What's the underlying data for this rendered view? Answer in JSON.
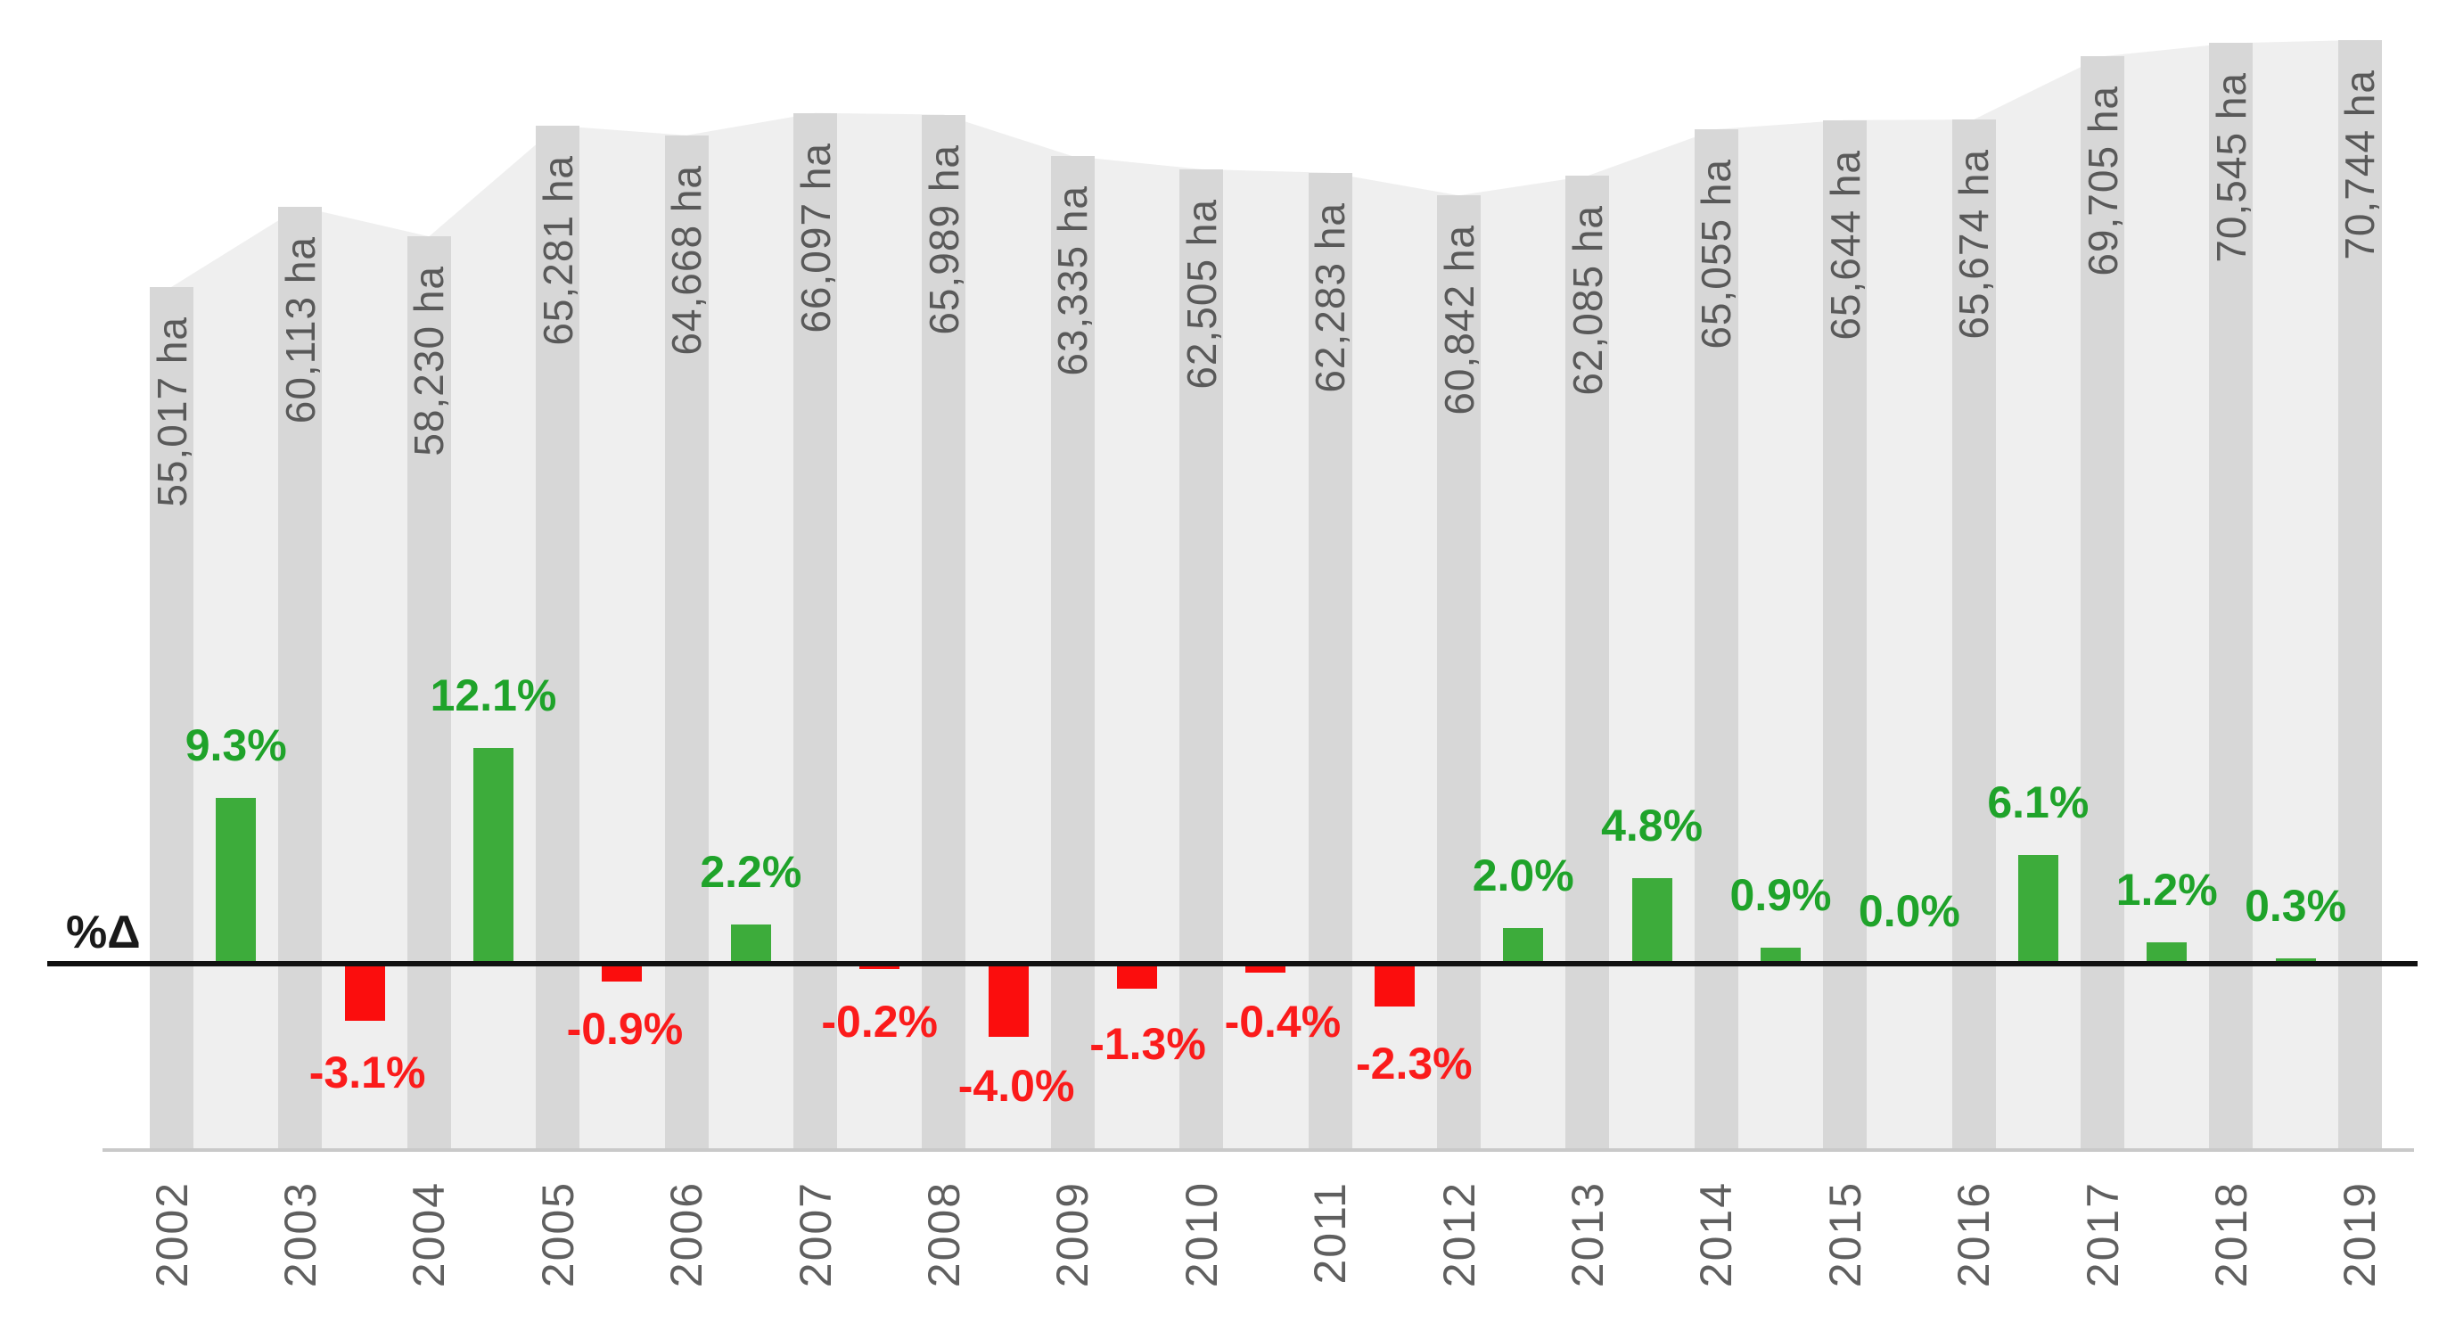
{
  "chart_data": {
    "type": "combo",
    "title": "",
    "categories": [
      "2002",
      "2003",
      "2004",
      "2005",
      "2006",
      "2007",
      "2008",
      "2009",
      "2010",
      "2011",
      "2012",
      "2013",
      "2014",
      "2015",
      "2016",
      "2017",
      "2018",
      "2019"
    ],
    "series": [
      {
        "name": "hectares",
        "type": "area+column",
        "unit": "ha",
        "values": [
          55017,
          60113,
          58230,
          65281,
          64668,
          66097,
          65989,
          63335,
          62505,
          62283,
          60842,
          62085,
          65055,
          65644,
          65674,
          69705,
          70545,
          70744
        ],
        "data_labels": [
          "55,017 ha",
          "60,113 ha",
          "58,230 ha",
          "65,281 ha",
          "64,668 ha",
          "66,097 ha",
          "65,989 ha",
          "63,335 ha",
          "62,505 ha",
          "62,283 ha",
          "60,842 ha",
          "62,085 ha",
          "65,055 ha",
          "65,644 ha",
          "65,674 ha",
          "69,705 ha",
          "70,545 ha",
          "70,744 ha"
        ],
        "ylim": [
          0,
          73250
        ]
      },
      {
        "name": "percent-change-year-over-year",
        "type": "column",
        "unit": "%",
        "between_categories": [
          "2002-2003",
          "2003-2004",
          "2004-2005",
          "2005-2006",
          "2006-2007",
          "2007-2008",
          "2008-2009",
          "2009-2010",
          "2010-2011",
          "2011-2012",
          "2012-2013",
          "2013-2014",
          "2014-2015",
          "2015-2016",
          "2016-2017",
          "2017-2018",
          "2018-2019"
        ],
        "values": [
          9.3,
          -3.1,
          12.1,
          -0.9,
          2.2,
          -0.2,
          -4.0,
          -1.3,
          -0.4,
          -2.3,
          2.0,
          4.8,
          0.9,
          0.0,
          6.1,
          1.2,
          0.3
        ],
        "data_labels": [
          "9.3%",
          "-3.1%",
          "12.1%",
          "-0.9%",
          "2.2%",
          "-0.2%",
          "-4.0%",
          "-1.3%",
          "-0.4%",
          "-2.3%",
          "2.0%",
          "4.8%",
          "0.9%",
          "0.0%",
          "6.1%",
          "1.2%",
          "0.3%"
        ]
      }
    ],
    "axis_label_left": "%Δ",
    "legend": "none",
    "grid": "off"
  },
  "colors": {
    "positive_bar": "#3dac3b",
    "positive_text": "#1fa32a",
    "negative_bar": "#fb0d0d",
    "negative_text": "#fb1b1b",
    "column_fill": "#d7d7d7",
    "area_fill": "#efefef",
    "value_text": "#595959",
    "zero_line": "#111111",
    "axis_baseline": "#c9c9c9",
    "background": "#ffffff"
  }
}
